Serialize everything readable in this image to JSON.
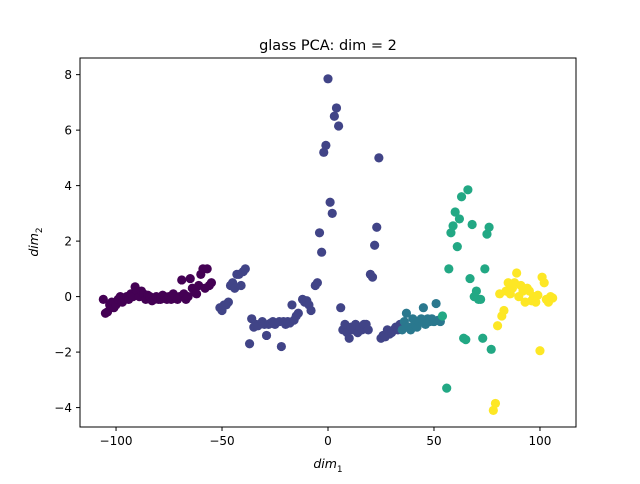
{
  "chart_data": {
    "type": "scatter",
    "title": "glass PCA: dim = 2",
    "xlabel": {
      "base": "dim",
      "sub": "1"
    },
    "ylabel": {
      "base": "dim",
      "sub": "2"
    },
    "xlim": [
      -117,
      117
    ],
    "ylim": [
      -4.7,
      8.6
    ],
    "xticks": [
      -100,
      -50,
      0,
      50,
      100
    ],
    "xtick_labels": [
      "−100",
      "−50",
      "0",
      "50",
      "100"
    ],
    "yticks": [
      -4,
      -2,
      0,
      2,
      4,
      6,
      8
    ],
    "ytick_labels": [
      "−4",
      "−2",
      "0",
      "2",
      "4",
      "6",
      "8"
    ],
    "grid": false,
    "series": [
      {
        "color": "#440154",
        "points": [
          [
            -106,
            -0.1
          ],
          [
            -105,
            -0.6
          ],
          [
            -104,
            -0.55
          ],
          [
            -103,
            -0.3
          ],
          [
            -102,
            -0.2
          ],
          [
            -101,
            -0.4
          ],
          [
            -100,
            -0.3
          ],
          [
            -99,
            -0.1
          ],
          [
            -98,
            0.0
          ],
          [
            -97,
            -0.2
          ],
          [
            -96,
            -0.1
          ],
          [
            -95,
            0.0
          ],
          [
            -94,
            -0.1
          ],
          [
            -93,
            0.1
          ],
          [
            -92,
            0.0
          ],
          [
            -91,
            0.35
          ],
          [
            -90,
            0.2
          ],
          [
            -89,
            0.0
          ],
          [
            -88,
            0.2
          ],
          [
            -87,
            0.1
          ],
          [
            -86,
            -0.1
          ],
          [
            -85,
            0.05
          ],
          [
            -84,
            0.0
          ],
          [
            -83,
            -0.15
          ],
          [
            -82,
            -0.1
          ],
          [
            -81,
            0.0
          ],
          [
            -80,
            -0.1
          ],
          [
            -79,
            -0.1
          ],
          [
            -78,
            0.05
          ],
          [
            -77,
            0.0
          ],
          [
            -76,
            -0.1
          ],
          [
            -75,
            0.0
          ],
          [
            -74,
            -0.1
          ],
          [
            -73,
            0.1
          ],
          [
            -72,
            0.0
          ],
          [
            -71,
            -0.1
          ],
          [
            -70,
            0.0
          ],
          [
            -69,
            0.6
          ],
          [
            -68,
            0.1
          ],
          [
            -67,
            -0.1
          ],
          [
            -66,
            0.0
          ],
          [
            -65,
            0.65
          ],
          [
            -64,
            0.3
          ],
          [
            -63,
            0.2
          ],
          [
            -62,
            0.1
          ],
          [
            -61,
            0.4
          ],
          [
            -60,
            0.8
          ],
          [
            -59,
            1.0
          ],
          [
            -58,
            0.3
          ],
          [
            -57,
            1.0
          ],
          [
            -56,
            0.4
          ],
          [
            -55,
            0.5
          ]
        ]
      },
      {
        "color": "#414487",
        "points": [
          [
            -51,
            -0.4
          ],
          [
            -50,
            -0.5
          ],
          [
            -49,
            -0.3
          ],
          [
            -48,
            -0.3
          ],
          [
            -47,
            -0.2
          ],
          [
            -46,
            0.4
          ],
          [
            -45,
            0.5
          ],
          [
            -44,
            0.3
          ],
          [
            -43,
            0.8
          ],
          [
            -42,
            0.8
          ],
          [
            -41,
            0.4
          ],
          [
            -40,
            0.9
          ],
          [
            -39,
            1.0
          ],
          [
            -37,
            -1.7
          ],
          [
            -36,
            -0.8
          ],
          [
            -35,
            -1.1
          ],
          [
            -34,
            -1.0
          ],
          [
            -33,
            -1.05
          ],
          [
            -31,
            -0.9
          ],
          [
            -30,
            -1.0
          ],
          [
            -29,
            -1.4
          ],
          [
            -28,
            -1.0
          ],
          [
            -27,
            -0.95
          ],
          [
            -26,
            -0.9
          ],
          [
            -25,
            -1.0
          ],
          [
            -23,
            -0.9
          ],
          [
            -22,
            -1.8
          ],
          [
            -21,
            -0.9
          ],
          [
            -20,
            -1.0
          ],
          [
            -19,
            -0.9
          ],
          [
            -18,
            -0.95
          ],
          [
            -17,
            -0.3
          ],
          [
            -16,
            -0.85
          ],
          [
            -15,
            -0.7
          ],
          [
            -14,
            -0.6
          ],
          [
            -12,
            -0.1
          ],
          [
            -11,
            -0.2
          ],
          [
            -10,
            -0.15
          ],
          [
            -9,
            -0.3
          ],
          [
            -8,
            -0.5
          ],
          [
            -6,
            0.4
          ],
          [
            -5,
            0.5
          ],
          [
            -4,
            2.3
          ],
          [
            -3,
            1.6
          ],
          [
            -2,
            5.2
          ],
          [
            -1,
            5.45
          ],
          [
            0,
            7.85
          ],
          [
            1,
            3.4
          ],
          [
            2,
            3.0
          ],
          [
            3,
            6.5
          ],
          [
            4,
            6.8
          ],
          [
            5,
            6.15
          ],
          [
            6,
            -0.4
          ],
          [
            7,
            -1.2
          ],
          [
            8,
            -1.0
          ],
          [
            9,
            -1.3
          ],
          [
            10,
            -1.5
          ],
          [
            11,
            -1.1
          ],
          [
            12,
            -1.2
          ],
          [
            13,
            -1.0
          ],
          [
            14,
            -1.3
          ],
          [
            15,
            -1.1
          ],
          [
            16,
            -1.2
          ],
          [
            17,
            -1.0
          ],
          [
            18,
            -1.0
          ],
          [
            19,
            -1.2
          ],
          [
            20,
            0.8
          ],
          [
            21,
            0.7
          ],
          [
            22,
            1.85
          ],
          [
            23,
            2.5
          ],
          [
            24,
            5.0
          ],
          [
            25,
            -1.5
          ],
          [
            26,
            -1.4
          ],
          [
            27,
            -1.45
          ],
          [
            28,
            -1.2
          ],
          [
            29,
            -1.35
          ],
          [
            30,
            -1.3
          ],
          [
            31,
            -1.2
          ],
          [
            32,
            -1.1
          ],
          [
            33,
            -1.2
          ],
          [
            34,
            -1.0
          ]
        ]
      },
      {
        "color": "#2a788e",
        "points": [
          [
            35,
            -1.2
          ],
          [
            36,
            -0.9
          ],
          [
            37,
            -0.6
          ],
          [
            38,
            -1.1
          ],
          [
            39,
            -1.2
          ],
          [
            40,
            -0.8
          ],
          [
            41,
            -1.0
          ],
          [
            42,
            -1.1
          ],
          [
            43,
            -0.9
          ],
          [
            44,
            -0.8
          ],
          [
            45,
            -0.4
          ],
          [
            46,
            -1.0
          ],
          [
            47,
            -0.8
          ],
          [
            48,
            -0.9
          ],
          [
            49,
            -0.8
          ],
          [
            50,
            -0.9
          ],
          [
            51,
            -0.25
          ],
          [
            52,
            -0.85
          ],
          [
            53,
            -0.9
          ]
        ]
      },
      {
        "color": "#22a884",
        "points": [
          [
            54,
            -0.7
          ],
          [
            56,
            -3.3
          ],
          [
            57,
            1.0
          ],
          [
            58,
            2.3
          ],
          [
            59,
            2.55
          ],
          [
            60,
            3.05
          ],
          [
            61,
            1.8
          ],
          [
            62,
            2.8
          ],
          [
            63,
            3.6
          ],
          [
            64,
            -1.5
          ],
          [
            65,
            -1.55
          ],
          [
            66,
            3.85
          ],
          [
            67,
            0.65
          ],
          [
            68,
            2.6
          ],
          [
            69,
            0.0
          ],
          [
            70,
            0.2
          ],
          [
            71,
            -0.1
          ],
          [
            72,
            -0.1
          ],
          [
            73,
            -1.5
          ],
          [
            74,
            1.0
          ],
          [
            75,
            2.25
          ],
          [
            76,
            2.5
          ],
          [
            77,
            -1.9
          ]
        ]
      },
      {
        "color": "#fde725",
        "points": [
          [
            78,
            -4.1
          ],
          [
            79,
            -3.85
          ],
          [
            80,
            -1.05
          ],
          [
            81,
            0.1
          ],
          [
            82,
            -0.7
          ],
          [
            83,
            -0.5
          ],
          [
            84,
            0.2
          ],
          [
            85,
            0.5
          ],
          [
            86,
            0.1
          ],
          [
            87,
            0.3
          ],
          [
            88,
            0.5
          ],
          [
            89,
            0.85
          ],
          [
            90,
            0.0
          ],
          [
            91,
            0.4
          ],
          [
            92,
            0.2
          ],
          [
            93,
            -0.2
          ],
          [
            94,
            0.3
          ],
          [
            95,
            0.2
          ],
          [
            96,
            -0.15
          ],
          [
            97,
            0.0
          ],
          [
            98,
            -0.2
          ],
          [
            99,
            0.05
          ],
          [
            100,
            -1.95
          ],
          [
            101,
            0.7
          ],
          [
            102,
            0.5
          ],
          [
            103,
            -0.1
          ],
          [
            104,
            -0.2
          ],
          [
            105,
            0.0
          ],
          [
            106,
            -0.05
          ]
        ]
      }
    ]
  }
}
